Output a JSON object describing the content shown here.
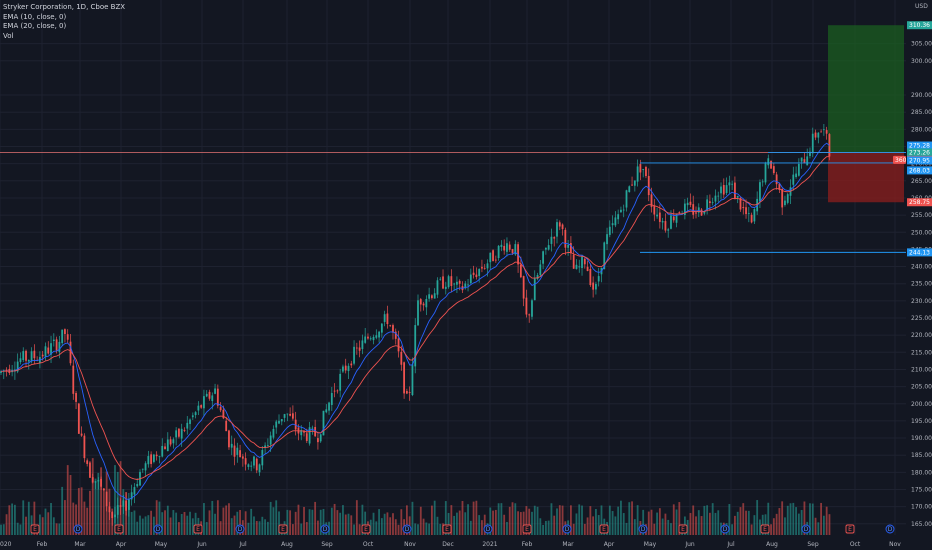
{
  "legend": {
    "symbol_line": "Stryker Corporation, 1D, Cboe BZX",
    "ema10": "EMA (10, close, 0)",
    "ema20": "EMA (20, close, 0)",
    "vol": "Vol"
  },
  "currency": "USD",
  "price_axis": {
    "ticks": [
      "305.00",
      "300.00",
      "290.00",
      "285.00",
      "280.00",
      "275.00",
      "270.00",
      "265.00",
      "260.00",
      "255.00",
      "250.00",
      "245.00",
      "240.00",
      "235.00",
      "230.00",
      "225.00",
      "220.00",
      "215.00",
      "210.00",
      "205.00",
      "200.00",
      "195.00",
      "190.00",
      "185.00",
      "180.00",
      "175.00",
      "170.00",
      "165.00"
    ]
  },
  "time_axis": {
    "ticks": [
      "020",
      "Feb",
      "Mar",
      "Apr",
      "May",
      "Jun",
      "Jul",
      "Aug",
      "Sep",
      "Oct",
      "Nov",
      "Dec",
      "2021",
      "Feb",
      "Mar",
      "Apr",
      "May",
      "Jun",
      "Jul",
      "Aug",
      "Sep",
      "Oct",
      "Nov"
    ]
  },
  "price_tags": [
    {
      "label": "310.36",
      "color": "#26a69a",
      "price": 310.36
    },
    {
      "label": "275.28",
      "color": "#2196f3",
      "price": 275.28
    },
    {
      "label": "273.26",
      "color": "#26a69a",
      "price": 273.26
    },
    {
      "label": "271.1",
      "color": "#ef5350",
      "price": 271.1
    },
    {
      "label": "270.95",
      "color": "#2196f3",
      "price": 270.95
    },
    {
      "label": "268.03",
      "color": "#2196f3",
      "price": 268.03
    },
    {
      "label": "258.75",
      "color": "#ef5350",
      "price": 258.75
    },
    {
      "label": "244.13",
      "color": "#2196f3",
      "price": 244.13
    }
  ],
  "side_tag": "360",
  "colors": {
    "up": "#26a69a",
    "down": "#ef5350",
    "ema10": "#2962ff",
    "ema20": "#ef5350",
    "hline": "#2196f3",
    "entry_line": "#e57373",
    "target_zone": "#1b5e20",
    "stop_zone": "#7f1d1d"
  },
  "markers": [
    "E",
    "D",
    "E",
    "D",
    "E",
    "D",
    "E",
    "D",
    "E",
    "D",
    "E",
    "D",
    "E",
    "D",
    "E",
    "D",
    "E",
    "D",
    "E",
    "D",
    "E",
    "D",
    "D",
    "E"
  ]
}
